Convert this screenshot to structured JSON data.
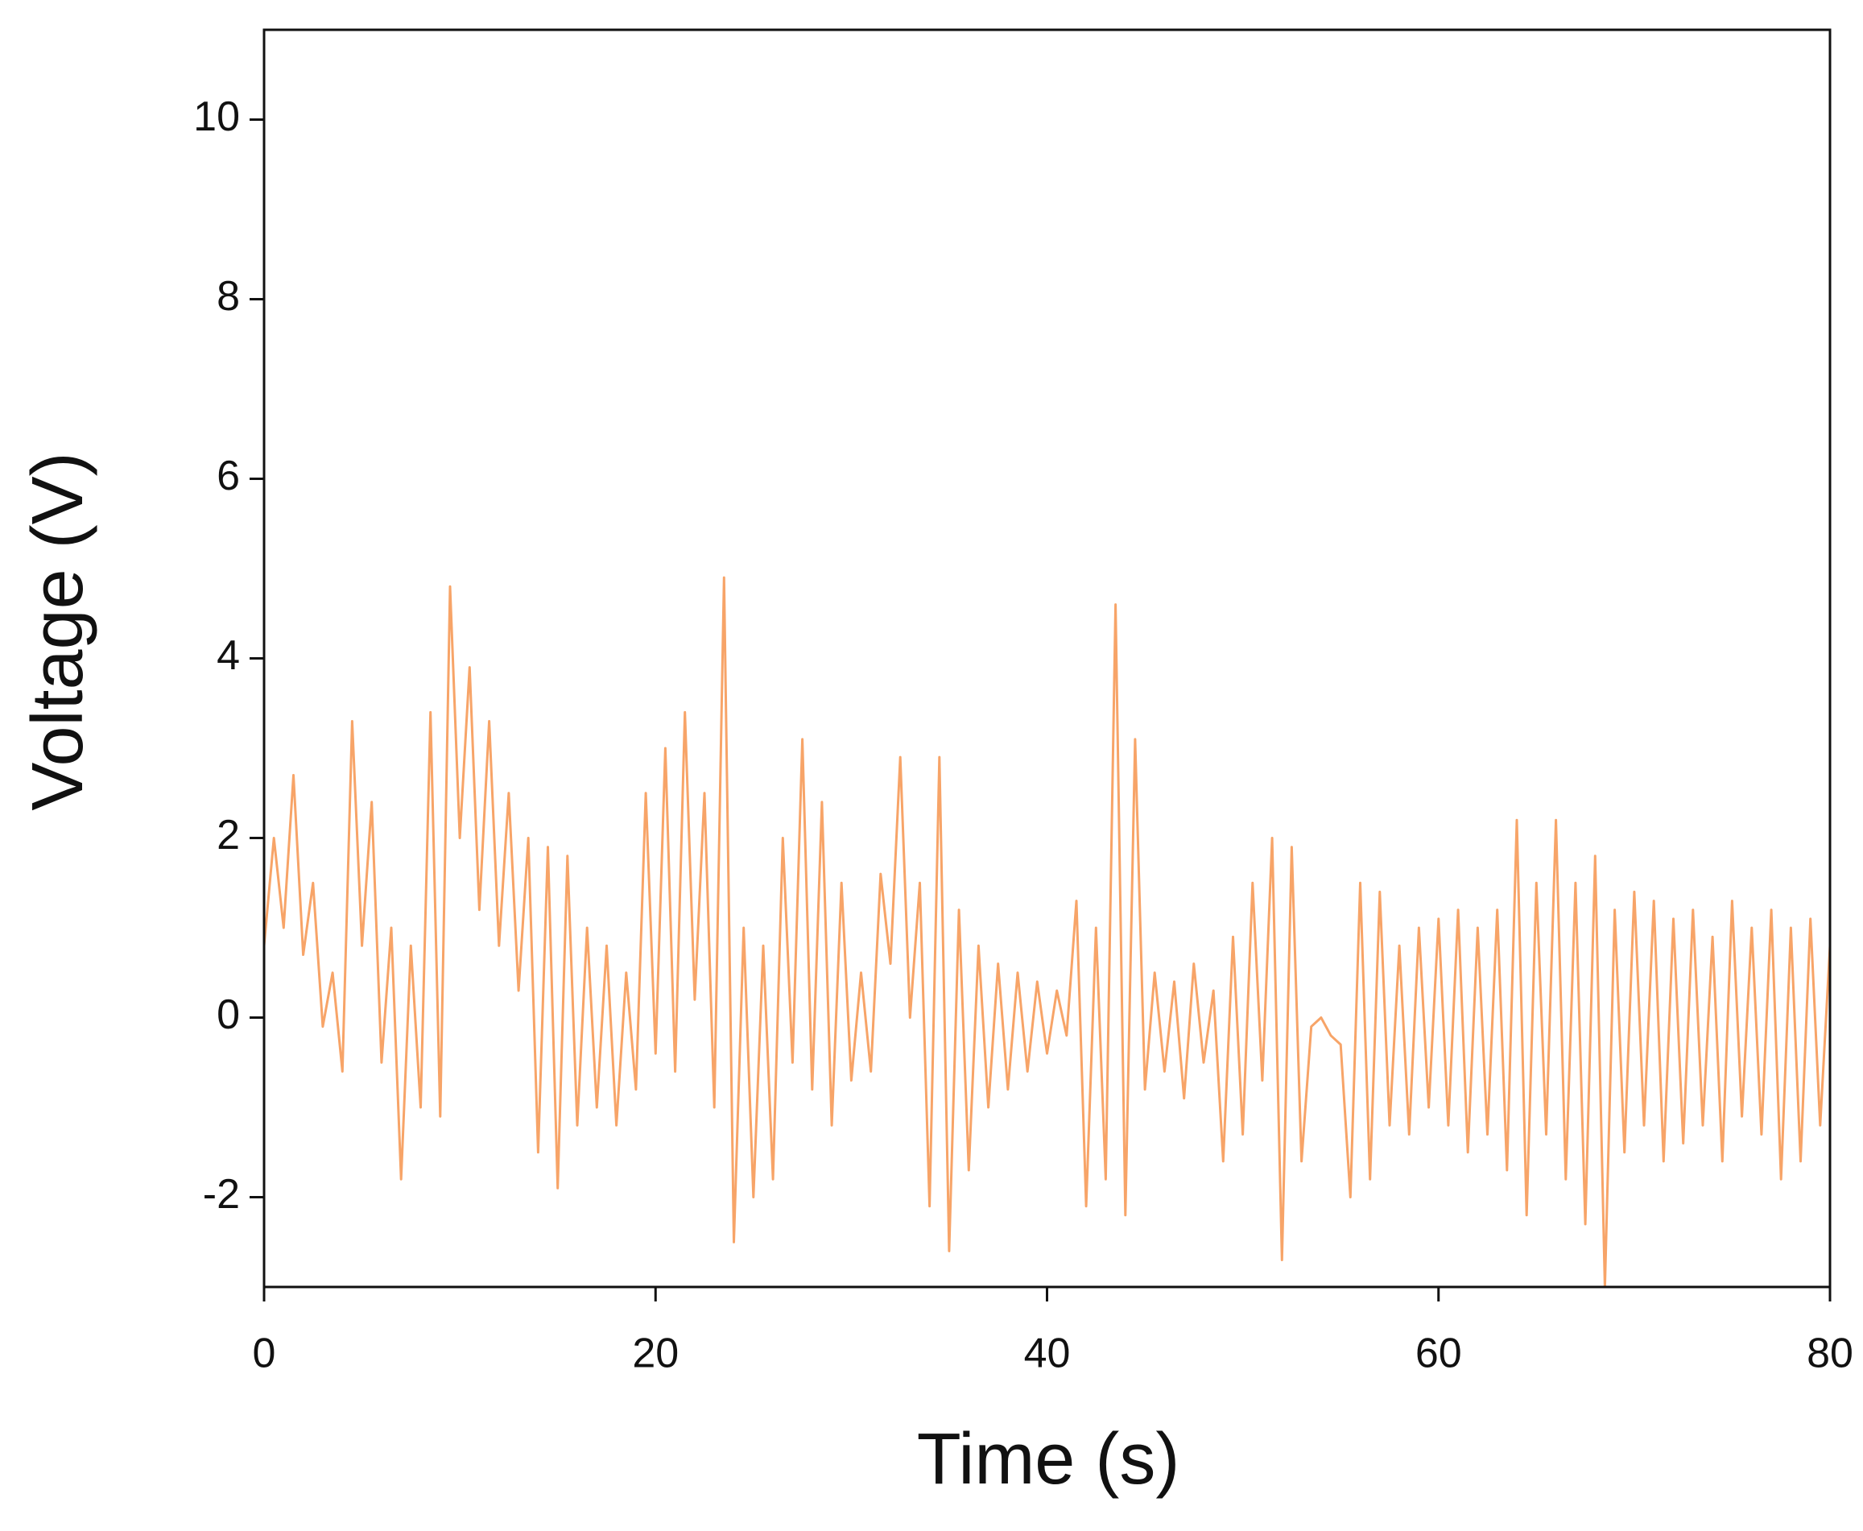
{
  "chart_data": {
    "type": "line",
    "xlabel": "Time (s)",
    "ylabel": "Voltage (V)",
    "xlim": [
      0,
      80
    ],
    "xticks": [
      0,
      20,
      40,
      60,
      80
    ],
    "ylim": [
      -3,
      11
    ],
    "yticks": [
      -2,
      0,
      2,
      4,
      6,
      8,
      10
    ],
    "series": [
      {
        "color": "#f7a468",
        "x": [
          0,
          0.5,
          1,
          1.5,
          2,
          2.5,
          3,
          3.5,
          4,
          4.5,
          5,
          5.5,
          6,
          6.5,
          7,
          7.5,
          8,
          8.5,
          9,
          9.5,
          10,
          10.5,
          11,
          11.5,
          12,
          12.5,
          13,
          13.5,
          14,
          14.5,
          15,
          15.5,
          16,
          16.5,
          17,
          17.5,
          18,
          18.5,
          19,
          19.5,
          20,
          20.5,
          21,
          21.5,
          22,
          22.5,
          23,
          23.5,
          24,
          24.5,
          25,
          25.5,
          26,
          26.5,
          27,
          27.5,
          28,
          28.5,
          29,
          29.5,
          30,
          30.5,
          31,
          31.5,
          32,
          32.5,
          33,
          33.5,
          34,
          34.5,
          35,
          35.5,
          36,
          36.5,
          37,
          37.5,
          38,
          38.5,
          39,
          39.5,
          40,
          40.5,
          41,
          41.5,
          42,
          42.5,
          43,
          43.5,
          44,
          44.5,
          45,
          45.5,
          46,
          46.5,
          47,
          47.5,
          48,
          48.5,
          49,
          49.5,
          50,
          50.5,
          51,
          51.5,
          52,
          52.5,
          53,
          53.5,
          54,
          54.5,
          55,
          55.5,
          56,
          56.5,
          57,
          57.5,
          58,
          58.5,
          59,
          59.5,
          60,
          60.5,
          61,
          61.5,
          62,
          62.5,
          63,
          63.5,
          64,
          64.5,
          65,
          65.5,
          66,
          66.5,
          67,
          67.5,
          68,
          68.5,
          69,
          69.5,
          70,
          70.5,
          71,
          71.5,
          72,
          72.5,
          73,
          73.5,
          74,
          74.5,
          75,
          75.5,
          76,
          76.5,
          77,
          77.5,
          78,
          78.5,
          79,
          79.5,
          80
        ],
        "values": [
          0.8,
          2.0,
          1.0,
          2.7,
          0.7,
          1.5,
          -0.1,
          0.5,
          -0.6,
          3.3,
          0.8,
          2.4,
          -0.5,
          1.0,
          -1.8,
          0.8,
          -1.0,
          3.4,
          -1.1,
          4.8,
          2.0,
          3.9,
          1.2,
          3.3,
          0.8,
          2.5,
          0.3,
          2.0,
          -1.5,
          1.9,
          -1.9,
          1.8,
          -1.2,
          1.0,
          -1.0,
          0.8,
          -1.2,
          0.5,
          -0.8,
          2.5,
          -0.4,
          3.0,
          -0.6,
          3.4,
          0.2,
          2.5,
          -1.0,
          4.9,
          -2.5,
          1.0,
          -2.0,
          0.8,
          -1.8,
          2.0,
          -0.5,
          3.1,
          -0.8,
          2.4,
          -1.2,
          1.5,
          -0.7,
          0.5,
          -0.6,
          1.6,
          0.6,
          2.9,
          0.0,
          1.5,
          -2.1,
          2.9,
          -2.6,
          1.2,
          -1.7,
          0.8,
          -1.0,
          0.6,
          -0.8,
          0.5,
          -0.6,
          0.4,
          -0.4,
          0.3,
          -0.2,
          1.3,
          -2.1,
          1.0,
          -1.8,
          4.6,
          -2.2,
          3.1,
          -0.8,
          0.5,
          -0.6,
          0.4,
          -0.9,
          0.6,
          -0.5,
          0.3,
          -1.6,
          0.9,
          -1.3,
          1.5,
          -0.7,
          2.0,
          -2.7,
          1.9,
          -1.6,
          -0.1,
          0.0,
          -0.2,
          -0.3,
          -2.0,
          1.5,
          -1.8,
          1.4,
          -1.2,
          0.8,
          -1.3,
          1.0,
          -1.0,
          1.1,
          -1.2,
          1.2,
          -1.5,
          1.0,
          -1.3,
          1.2,
          -1.7,
          2.2,
          -2.2,
          1.5,
          -1.3,
          2.2,
          -1.8,
          1.5,
          -2.3,
          1.8,
          -3.0,
          1.2,
          -1.5,
          1.4,
          -1.2,
          1.3,
          -1.6,
          1.1,
          -1.4,
          1.2,
          -1.2,
          0.9,
          -1.6,
          1.3,
          -1.1,
          1.0,
          -1.3,
          1.2,
          -1.8,
          1.0,
          -1.6,
          1.1,
          -1.2,
          0.8
        ]
      }
    ]
  }
}
